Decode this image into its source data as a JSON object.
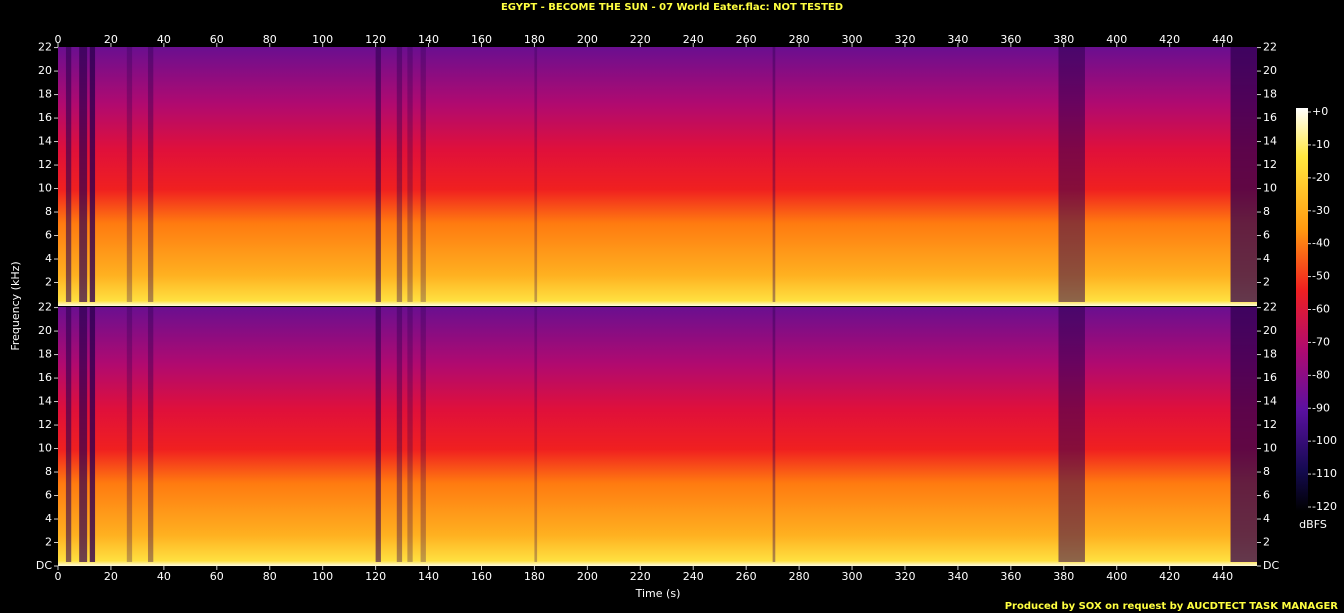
{
  "chart_data": {
    "type": "spectrogram",
    "title": "EGYPT - BECOME THE SUN - 07 World Eater.flac: NOT TESTED",
    "xlabel": "Time (s)",
    "ylabel": "Frequency (kHz)",
    "xlim": [
      0,
      453
    ],
    "xticks": [
      0,
      20,
      40,
      60,
      80,
      100,
      120,
      140,
      160,
      180,
      200,
      220,
      240,
      260,
      280,
      300,
      320,
      340,
      360,
      380,
      400,
      420,
      440
    ],
    "channels": [
      {
        "ylim": [
          0,
          22.05
        ],
        "yticks": [
          2,
          4,
          6,
          8,
          10,
          12,
          14,
          16,
          18,
          20,
          22
        ]
      },
      {
        "ylim": [
          0,
          22.05
        ],
        "yticks": [
          {
            "value": 0,
            "label": "DC"
          },
          2,
          4,
          6,
          8,
          10,
          12,
          14,
          16,
          18,
          20,
          22
        ]
      }
    ],
    "colorbar": {
      "label": "dBFS",
      "lim": [
        -120,
        0
      ],
      "ticks": [
        {
          "value": 0,
          "label": "+0"
        },
        -10,
        -20,
        -30,
        -40,
        -50,
        -60,
        -70,
        -80,
        -90,
        -100,
        -110,
        -120
      ]
    },
    "credit": "Produced by SOX on request by AUCDTECT TASK MANAGER"
  }
}
